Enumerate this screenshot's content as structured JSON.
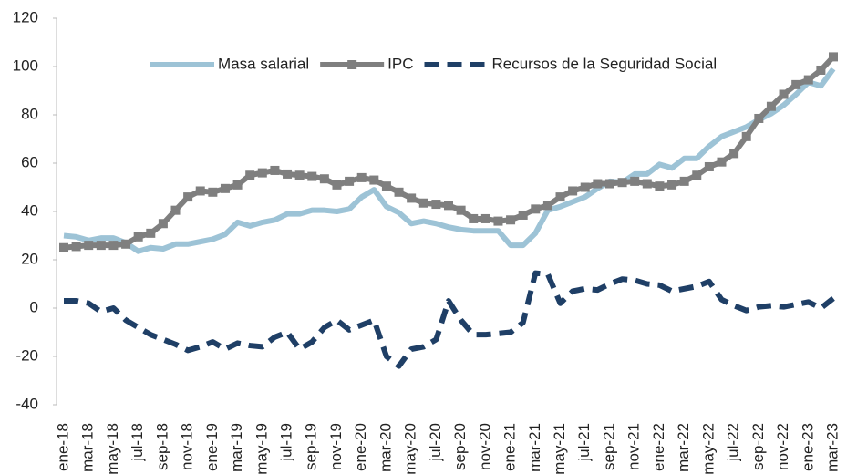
{
  "chart_data": {
    "type": "line",
    "categories": [
      "ene-18",
      null,
      "mar-18",
      null,
      "may-18",
      null,
      "jul-18",
      null,
      "sep-18",
      null,
      "nov-18",
      null,
      "ene-19",
      null,
      "mar-19",
      null,
      "may-19",
      null,
      "jul-19",
      null,
      "sep-19",
      null,
      "nov-19",
      null,
      "ene-20",
      null,
      "mar-20",
      null,
      "may-20",
      null,
      "jul-20",
      null,
      "sep-20",
      null,
      "nov-20",
      null,
      "ene-21",
      null,
      "mar-21",
      null,
      "may-21",
      null,
      "jul-21",
      null,
      "sep-21",
      null,
      "nov-21",
      null,
      "ene-22",
      null,
      "mar-22",
      null,
      "may-22",
      null,
      "jul-22",
      null,
      "sep-22",
      null,
      "nov-22",
      null,
      "ene-23",
      null,
      "mar-23"
    ],
    "series": [
      {
        "name": "Masa salarial",
        "color": "#9dc3d6",
        "style": "solid",
        "marker": false,
        "values": [
          30,
          29.5,
          28,
          29,
          29,
          27,
          23.5,
          25,
          24.5,
          26.5,
          26.5,
          27.5,
          28.5,
          30.5,
          35.5,
          34,
          35.5,
          36.5,
          39,
          39,
          40.5,
          40.5,
          40,
          41,
          46,
          49,
          42,
          39.5,
          35,
          36,
          35,
          33.5,
          32.5,
          32,
          32,
          32,
          26,
          26,
          31,
          40.5,
          42,
          44,
          46,
          49.5,
          52.5,
          52,
          55.5,
          55.5,
          59.5,
          58,
          62,
          62,
          67,
          71,
          73,
          75,
          78,
          80.5,
          84,
          88.5,
          93.5,
          92,
          99
        ]
      },
      {
        "name": "IPC",
        "color": "#7f7f7f",
        "style": "solid",
        "marker": true,
        "values": [
          25,
          25.5,
          26,
          26,
          26,
          26.5,
          29.5,
          31,
          35,
          40.5,
          46,
          48.5,
          48,
          49.5,
          51,
          55,
          56,
          57,
          55.5,
          55,
          54.5,
          53.5,
          51,
          52.5,
          54,
          53,
          50.5,
          48,
          45.5,
          43.5,
          43,
          42.5,
          40.5,
          37,
          37,
          36,
          36.5,
          38.5,
          41,
          42.5,
          46,
          48.5,
          50,
          51.5,
          51.5,
          52,
          52.5,
          51.5,
          50.5,
          51,
          52.5,
          55,
          58.5,
          60.5,
          64,
          71,
          78.5,
          83.5,
          88.5,
          92.5,
          94.5,
          98.5,
          104
        ]
      },
      {
        "name": "Recursos de la Seguridad Social",
        "color": "#1f3f66",
        "style": "dashed",
        "marker": false,
        "values": [
          3,
          3,
          2,
          -1.5,
          0,
          -5,
          -8,
          -11,
          -13,
          -15,
          -17.5,
          -16,
          -14,
          -17,
          -14.5,
          -15.5,
          -16,
          -12,
          -10,
          -17,
          -14,
          -8,
          -5,
          -9,
          -7,
          -5,
          -20,
          -24,
          -17,
          -16,
          -13,
          3,
          -5,
          -11,
          -11,
          -10.5,
          -10,
          -6,
          14.5,
          14,
          2,
          7,
          8,
          7.5,
          10,
          12,
          11.5,
          10,
          9.5,
          7,
          8,
          9,
          11,
          3.5,
          1,
          -1,
          0.5,
          1,
          0.5,
          1.5,
          2.5,
          0,
          4
        ]
      }
    ],
    "ylim": [
      -40,
      120
    ],
    "yticks": [
      -40,
      -20,
      0,
      20,
      40,
      60,
      80,
      100,
      120
    ],
    "grid": false,
    "legend": "top"
  }
}
